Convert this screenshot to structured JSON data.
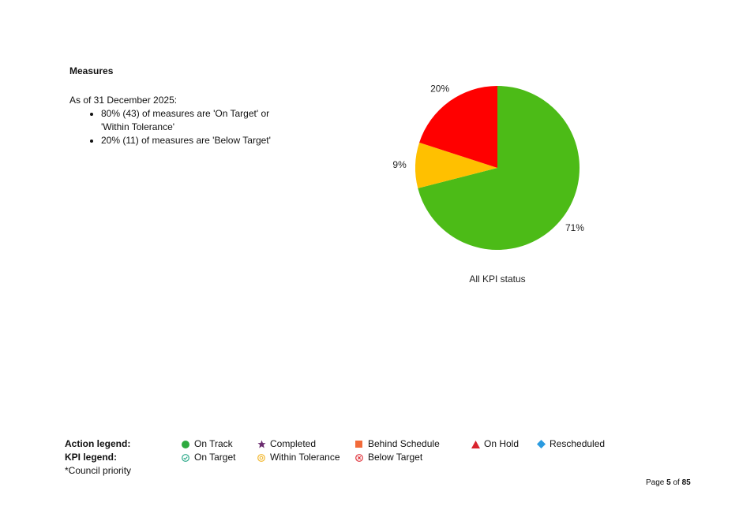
{
  "section": {
    "heading": "Measures",
    "as_of": "As of 31 December 2025:",
    "bullets": [
      "80% (43) of measures are 'On Target' or 'Within Tolerance'",
      "20% (11) of measures are 'Below Target'"
    ]
  },
  "chart_data": {
    "type": "pie",
    "title": "All KPI status",
    "slices": [
      {
        "label": "On Target",
        "value": 71,
        "display": "71%",
        "color": "#4cbb17"
      },
      {
        "label": "Within Tolerance",
        "value": 9,
        "display": "9%",
        "color": "#ffc000"
      },
      {
        "label": "Below Target",
        "value": 20,
        "display": "20%",
        "color": "#ff0000"
      }
    ]
  },
  "legend": {
    "action_title": "Action legend:",
    "kpi_title": "KPI legend:",
    "action_items": [
      {
        "label": "On Track",
        "icon": "green-circle-icon",
        "color": "#2eaa3f"
      },
      {
        "label": "Completed",
        "icon": "purple-star-icon",
        "color": "#6b2c6f"
      },
      {
        "label": "Behind Schedule",
        "icon": "orange-square-icon",
        "color": "#f26b3a"
      },
      {
        "label": "On Hold",
        "icon": "red-triangle-icon",
        "color": "#d9232d"
      },
      {
        "label": "Rescheduled",
        "icon": "blue-diamond-icon",
        "color": "#2b9be0"
      }
    ],
    "kpi_items": [
      {
        "label": "On Target",
        "icon": "check-circle-icon",
        "color": "#2eaa8a"
      },
      {
        "label": "Within Tolerance",
        "icon": "tolerance-circle-icon",
        "color": "#f2b72e"
      },
      {
        "label": "Below Target",
        "icon": "cross-circle-icon",
        "color": "#e0353d"
      }
    ],
    "note": "*Council priority"
  },
  "footer": {
    "page_prefix": "Page",
    "page_current": "5",
    "page_of": "of",
    "page_total": "85"
  }
}
